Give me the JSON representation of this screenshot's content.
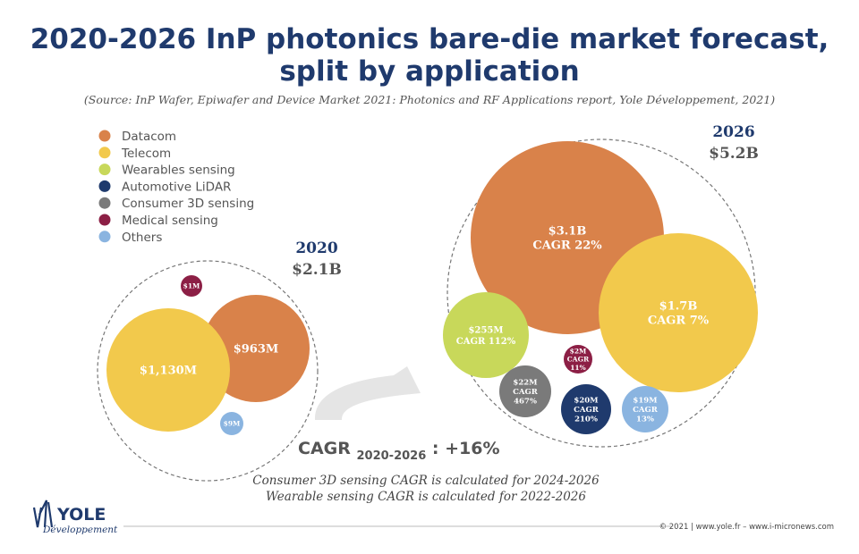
{
  "title_line1": "2020-2026 InP photonics bare-die market forecast,",
  "title_line2": "split by application",
  "source": "(Source: InP Wafer, Epiwafer and Device Market 2021: Photonics and RF Applications report, Yole Développement, 2021)",
  "chart_data": {
    "type": "bubble",
    "legend": [
      {
        "name": "Datacom",
        "color": "#d9824a"
      },
      {
        "name": "Telecom",
        "color": "#f2c94c"
      },
      {
        "name": "Wearables sensing",
        "color": "#c8d85a"
      },
      {
        "name": "Automotive LiDAR",
        "color": "#1f3a6d"
      },
      {
        "name": "Consumer 3D sensing",
        "color": "#7a7a7a"
      },
      {
        "name": "Medical sensing",
        "color": "#8c1f45"
      },
      {
        "name": "Others",
        "color": "#8ab4e0"
      }
    ],
    "groups": [
      {
        "year": "2020",
        "total": "$2.1B",
        "bubbles": [
          {
            "segment": "Datacom",
            "value_musd": 963,
            "label": "$963M"
          },
          {
            "segment": "Telecom",
            "value_musd": 1130,
            "label": "$1,130M"
          },
          {
            "segment": "Medical sensing",
            "value_musd": 1,
            "label": "$1M"
          },
          {
            "segment": "Others",
            "value_musd": 9,
            "label": "$9M"
          }
        ]
      },
      {
        "year": "2026",
        "total": "$5.2B",
        "bubbles": [
          {
            "segment": "Datacom",
            "value_musd": 3100,
            "label": "$3.1B",
            "cagr": "CAGR 22%"
          },
          {
            "segment": "Telecom",
            "value_musd": 1700,
            "label": "$1.7B",
            "cagr": "CAGR 7%"
          },
          {
            "segment": "Wearables sensing",
            "value_musd": 255,
            "label": "$255M",
            "cagr": "CAGR 112%"
          },
          {
            "segment": "Medical sensing",
            "value_musd": 2,
            "label": "$2M",
            "cagr": "CAGR 11%"
          },
          {
            "segment": "Consumer 3D sensing",
            "value_musd": 22,
            "label": "$22M",
            "cagr": "CAGR 467%"
          },
          {
            "segment": "Automotive LiDAR",
            "value_musd": 20,
            "label": "$20M",
            "cagr": "CAGR 210%"
          },
          {
            "segment": "Others",
            "value_musd": 19,
            "label": "$19M",
            "cagr": "CAGR 13%"
          }
        ]
      }
    ],
    "overall_cagr": {
      "label": "CAGR",
      "subscript": "2020-2026",
      "value": ": +16%"
    }
  },
  "notes": [
    "Consumer 3D sensing CAGR is calculated for 2024-2026",
    "Wearable sensing CAGR is calculated for 2022-2026"
  ],
  "logo": {
    "name": "YOLE",
    "sub": "Développement"
  },
  "footer": "© 2021 | www.yole.fr – www.i-micronews.com"
}
